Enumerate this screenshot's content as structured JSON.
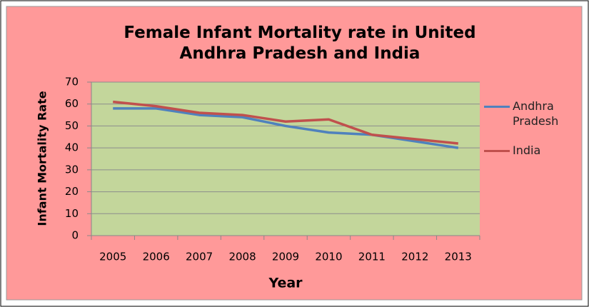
{
  "chart_data": {
    "type": "line",
    "title": "Female Infant Mortality rate in United Andhra Pradesh and India",
    "x_label": "Year",
    "y_label": "Infant Mortality Rate",
    "categories": [
      "2005",
      "2006",
      "2007",
      "2008",
      "2009",
      "2010",
      "2011",
      "2012",
      "2013"
    ],
    "series": [
      {
        "name": "Andhra Pradesh",
        "color": "#4f81bd",
        "values": [
          58,
          58,
          55,
          54,
          50,
          47,
          46,
          43,
          40
        ]
      },
      {
        "name": "India",
        "color": "#c0504d",
        "values": [
          61,
          59,
          56,
          55,
          52,
          53,
          46,
          44,
          42
        ]
      }
    ],
    "ylim": [
      0,
      70
    ],
    "yticks": [
      0,
      10,
      20,
      30,
      40,
      50,
      60,
      70
    ],
    "grid": true
  }
}
